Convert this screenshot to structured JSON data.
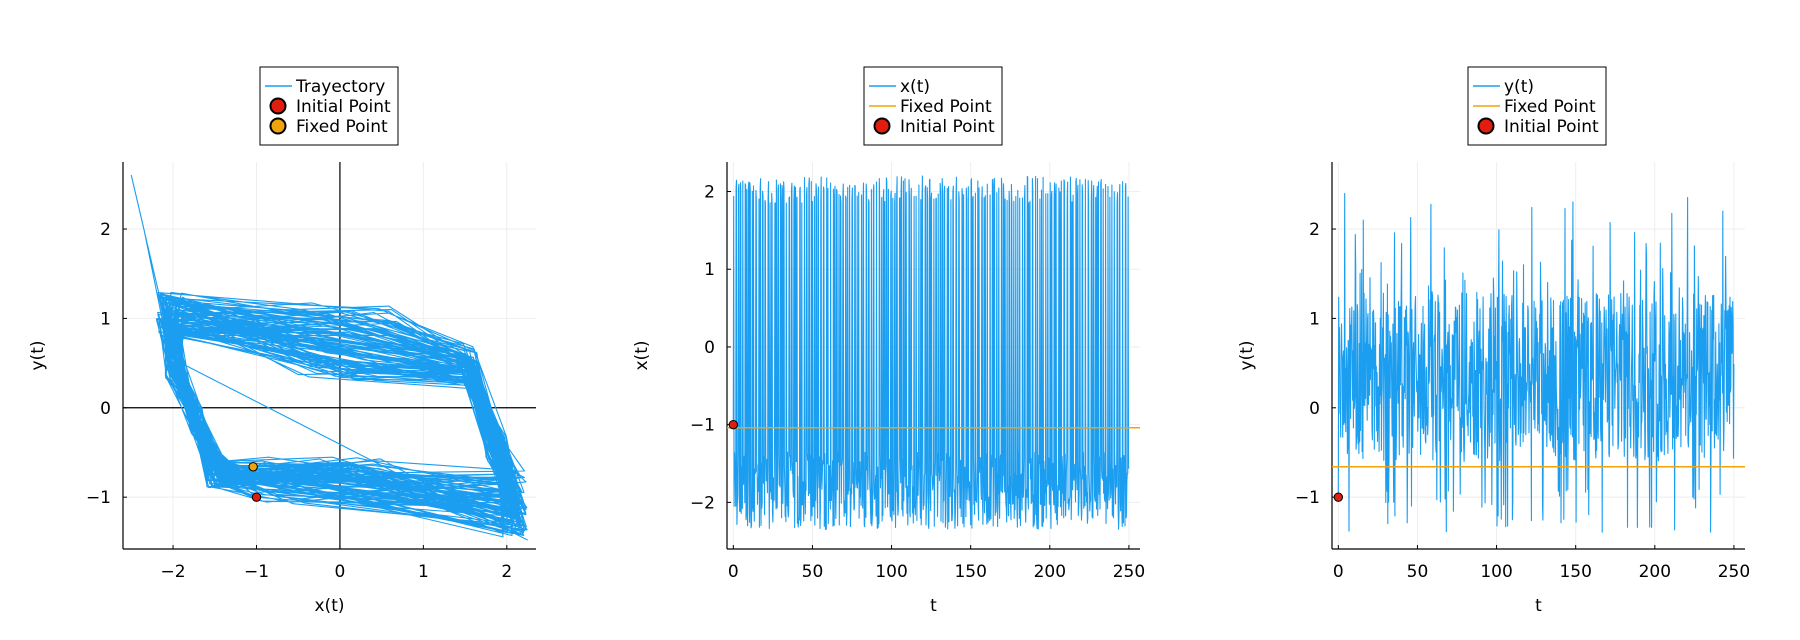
{
  "chart_data": [
    {
      "type": "line",
      "xlabel": "x(t)",
      "ylabel": "y(t)",
      "xlim": [
        -2.6,
        2.35
      ],
      "ylim": [
        -1.58,
        2.75
      ],
      "xticks": [
        -2,
        -1,
        0,
        1,
        2
      ],
      "yticks": [
        -1,
        0,
        1,
        2
      ],
      "xticklabels": [
        "−2",
        "−1",
        "0",
        "1",
        "2"
      ],
      "yticklabels": [
        "−1",
        "0",
        "1",
        "2"
      ],
      "grid": true,
      "zero_lines": true,
      "legend_placement": "top-outside",
      "legend": [
        {
          "label": "Trayectory",
          "kind": "line",
          "color": "#1b9ef0"
        },
        {
          "label": "Initial Point",
          "kind": "marker",
          "color": "#e01d0f"
        },
        {
          "label": "Fixed Point",
          "kind": "marker",
          "color": "#f0a30c"
        }
      ],
      "series": [
        {
          "name": "Trayectory",
          "color": "#1b9ef0",
          "kind": "phase_trajectory",
          "x_range": [
            -2.5,
            2.25
          ],
          "y_range": [
            -1.48,
            2.6
          ]
        },
        {
          "name": "Initial Point",
          "color": "#e01d0f",
          "kind": "point",
          "x": [
            -1.0
          ],
          "y": [
            -1.0
          ]
        },
        {
          "name": "Fixed Point",
          "color": "#f0a30c",
          "kind": "point",
          "x": [
            -1.04
          ],
          "y": [
            -0.66
          ]
        }
      ]
    },
    {
      "type": "line",
      "xlabel": "t",
      "ylabel": "x(t)",
      "xlim": [
        -4,
        257
      ],
      "ylim": [
        -2.6,
        2.38
      ],
      "xticks": [
        0,
        50,
        100,
        150,
        200,
        250
      ],
      "yticks": [
        -2,
        -1,
        0,
        1,
        2
      ],
      "xticklabels": [
        "0",
        "50",
        "100",
        "150",
        "200",
        "250"
      ],
      "yticklabels": [
        "−2",
        "−1",
        "0",
        "1",
        "2"
      ],
      "grid": true,
      "legend_placement": "top-outside",
      "legend": [
        {
          "label": "x(t)",
          "kind": "line",
          "color": "#1b9ef0"
        },
        {
          "label": "Fixed Point",
          "kind": "line",
          "color": "#f0a30c"
        },
        {
          "label": "Initial Point",
          "kind": "marker",
          "color": "#e01d0f"
        }
      ],
      "series": [
        {
          "name": "x(t)",
          "color": "#1b9ef0",
          "kind": "time_series",
          "t_range": [
            0,
            250
          ],
          "y_range": [
            -2.45,
            2.2
          ]
        },
        {
          "name": "Fixed Point",
          "color": "#f0a30c",
          "kind": "hline",
          "y": -1.04
        },
        {
          "name": "Initial Point",
          "color": "#e01d0f",
          "kind": "point",
          "x": [
            0
          ],
          "y": [
            -1.0
          ]
        }
      ]
    },
    {
      "type": "line",
      "xlabel": "t",
      "ylabel": "y(t)",
      "xlim": [
        -4,
        257
      ],
      "ylim": [
        -1.58,
        2.75
      ],
      "xticks": [
        0,
        50,
        100,
        150,
        200,
        250
      ],
      "yticks": [
        -1,
        0,
        1,
        2
      ],
      "xticklabels": [
        "0",
        "50",
        "100",
        "150",
        "200",
        "250"
      ],
      "yticklabels": [
        "−1",
        "0",
        "1",
        "2"
      ],
      "grid": true,
      "legend_placement": "top-outside",
      "legend": [
        {
          "label": "y(t)",
          "kind": "line",
          "color": "#1b9ef0"
        },
        {
          "label": "Fixed Point",
          "kind": "line",
          "color": "#f0a30c"
        },
        {
          "label": "Initial Point",
          "kind": "marker",
          "color": "#e01d0f"
        }
      ],
      "series": [
        {
          "name": "y(t)",
          "color": "#1b9ef0",
          "kind": "time_series",
          "t_range": [
            0,
            250
          ],
          "y_range": [
            -1.45,
            2.6
          ]
        },
        {
          "name": "Fixed Point",
          "color": "#f0a30c",
          "kind": "hline",
          "y": -0.66
        },
        {
          "name": "Initial Point",
          "color": "#e01d0f",
          "kind": "point",
          "x": [
            0
          ],
          "y": [
            -1.0
          ]
        }
      ]
    }
  ]
}
